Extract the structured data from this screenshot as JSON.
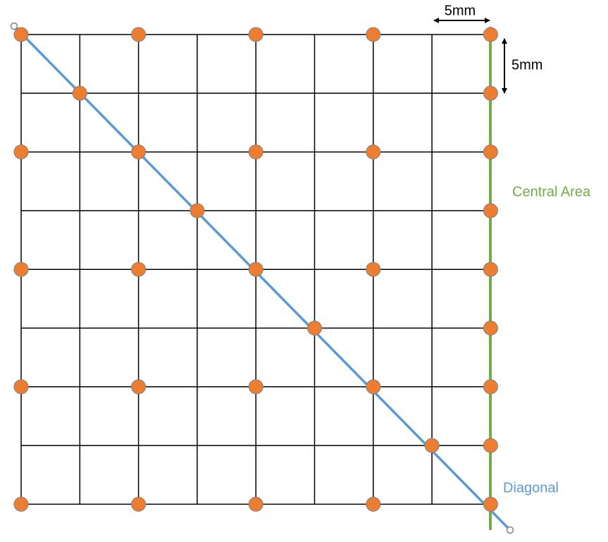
{
  "labels": {
    "horizontal_spacing": "5mm",
    "vertical_spacing": "5mm",
    "central_area": "Central Area",
    "diagonal": "Diagonal"
  }
}
